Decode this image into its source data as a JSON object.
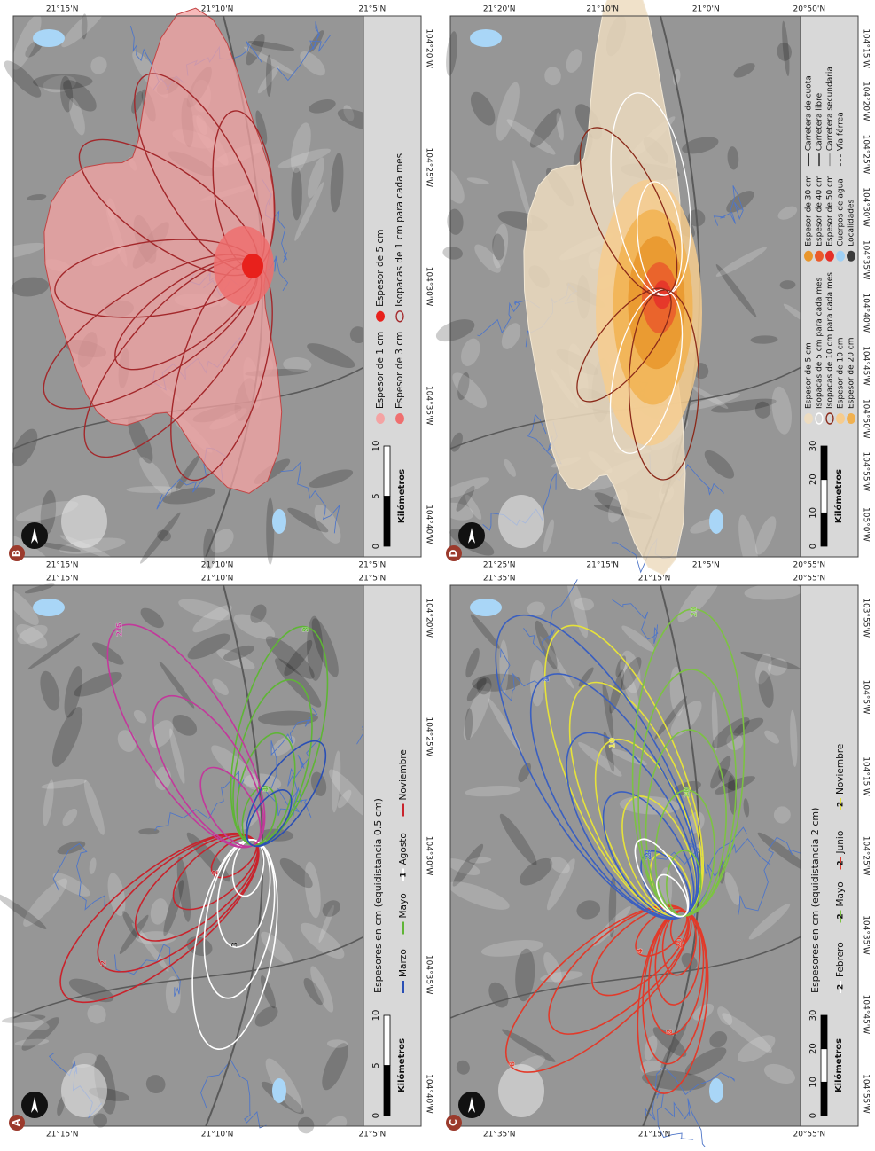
{
  "panels": [
    {
      "letter": "A",
      "lat_labels_top": [
        "21°15'N",
        "21°10'N",
        "21°5'N"
      ],
      "lat_labels_bottom": [
        "21°15'N",
        "21°10'N",
        "21°5'N"
      ],
      "lon_labels": [
        "104°40'W",
        "104°35'W",
        "104°30'W",
        "104°25'W",
        "104°20'W"
      ],
      "legend": {
        "title": "Espesores en cm (equidistancia 0.5 cm)",
        "items": [
          {
            "label": "Marzo",
            "color": "#2a4fb5",
            "style": "line"
          },
          {
            "label": "Mayo",
            "color": "#5fb536",
            "style": "line"
          },
          {
            "label": "Agosto",
            "color": "#ffffff",
            "style": "line",
            "mark_label": "1"
          },
          {
            "label": "Noviembre",
            "color": "#c9232c",
            "style": "line"
          }
        ]
      },
      "scale": {
        "ticks": [
          "0",
          "5",
          "10"
        ],
        "label": "Kilómetros"
      },
      "contour_labels": [
        "1",
        "2",
        "3",
        "4",
        "5",
        "2.5",
        "1",
        "2",
        "3",
        "1",
        "2",
        "1",
        "2"
      ]
    },
    {
      "letter": "B",
      "lat_labels_top": [
        "21°15'N",
        "21°10'N",
        "21°5'N"
      ],
      "lat_labels_bottom": [
        "21°15'N",
        "21°10'N",
        "21°5'N"
      ],
      "lon_labels": [
        "104°40'W",
        "104°35'W",
        "104°30'W",
        "104°25'W",
        "104°20'W"
      ],
      "legend": {
        "items": [
          {
            "label": "Espesor de 1 cm",
            "color": "#f4a3a3",
            "style": "fill"
          },
          {
            "label": "Espesor de 3 cm",
            "color": "#ef6f6f",
            "style": "fill"
          },
          {
            "label": "Espesor de 5 cm",
            "color": "#e8211c",
            "style": "fill"
          },
          {
            "label": "Isopacas de 1 cm para cada mes",
            "color": "#a3282b",
            "style": "outline"
          }
        ]
      },
      "scale": {
        "ticks": [
          "0",
          "5",
          "10"
        ],
        "label": "Kilómetros"
      }
    },
    {
      "letter": "C",
      "lat_labels_top": [
        "21°35'N",
        "21°15'N",
        "20°55'N"
      ],
      "lat_labels_bottom": [
        "21°35'N",
        "21°15'N",
        "20°55'N"
      ],
      "lon_labels": [
        "104°55'W",
        "104°45'W",
        "104°35'W",
        "104°25'W",
        "104°15'W",
        "104°5'W",
        "103°55'W"
      ],
      "legend": {
        "title": "Espesores en cm (equidistancia 2 cm)",
        "items": [
          {
            "label": "Febrero",
            "color": "#ffffff",
            "style": "line",
            "mark_label": "2"
          },
          {
            "label": "Mayo",
            "color": "#7cc243",
            "style": "line",
            "mark_label": "2"
          },
          {
            "label": "Junio",
            "color": "#e23a2a",
            "style": "line",
            "mark_label": "2"
          },
          {
            "label": "Noviembre",
            "color": "#e6e23a",
            "style": "line",
            "mark_label": "2"
          }
        ]
      },
      "scale": {
        "ticks": [
          "0",
          "10",
          "20",
          "30"
        ],
        "label": "Kilómetros"
      },
      "contour_labels": [
        "2",
        "4",
        "6",
        "8",
        "10",
        "20",
        "2",
        "4",
        "10",
        "20",
        "2",
        "4",
        "6",
        "10",
        "2",
        "4",
        "10",
        "20"
      ]
    },
    {
      "letter": "D",
      "lat_labels_top": [
        "21°20'N",
        "21°10'N",
        "21°0'N",
        "20°50'N"
      ],
      "lat_labels_bottom": [
        "21°25'N",
        "21°15'N",
        "21°5'N",
        "20°55'N"
      ],
      "lon_labels": [
        "105°0'W",
        "104°55'W",
        "104°50'W",
        "104°45'W",
        "104°40'W",
        "104°35'W",
        "104°30'W",
        "104°25'W",
        "104°20'W",
        "104°15'W"
      ],
      "legend": {
        "items": [
          {
            "label": "Espesor de 5 cm",
            "color": "#eddcc0",
            "style": "fill"
          },
          {
            "label": "Isopacas de 5 cm para cada mes",
            "color": "#ffffff",
            "style": "outline"
          },
          {
            "label": "Isopacas de 10 cm para cada mes",
            "color": "#8b2a1a",
            "style": "outline"
          },
          {
            "label": "Espesor de 10 cm",
            "color": "#f6cc8e",
            "style": "fill"
          },
          {
            "label": "Espesor de 20 cm",
            "color": "#f1b150",
            "style": "fill"
          },
          {
            "label": "Espesor de 30 cm",
            "color": "#e9962b",
            "style": "fill"
          },
          {
            "label": "Espesor de 40 cm",
            "color": "#ea5a2b",
            "style": "fill"
          },
          {
            "label": "Espesor de 50 cm",
            "color": "#e5302a",
            "style": "fill"
          },
          {
            "label": "Cuerpos de agua",
            "color": "#9fd0f5",
            "style": "fill"
          },
          {
            "label": "Localidades",
            "color": "#3a3a3a",
            "style": "fill"
          },
          {
            "label": "Carretera de cuota",
            "color": "#333333",
            "style": "line"
          },
          {
            "label": "Carretera libre",
            "color": "#555555",
            "style": "line"
          },
          {
            "label": "Carretera secundaria",
            "color": "#777777",
            "style": "thin"
          },
          {
            "label": "Vía férrea",
            "color": "#555555",
            "style": "dash"
          }
        ]
      },
      "scale": {
        "ticks": [
          "0",
          "10",
          "20",
          "30"
        ],
        "label": "Kilómetros"
      }
    }
  ]
}
